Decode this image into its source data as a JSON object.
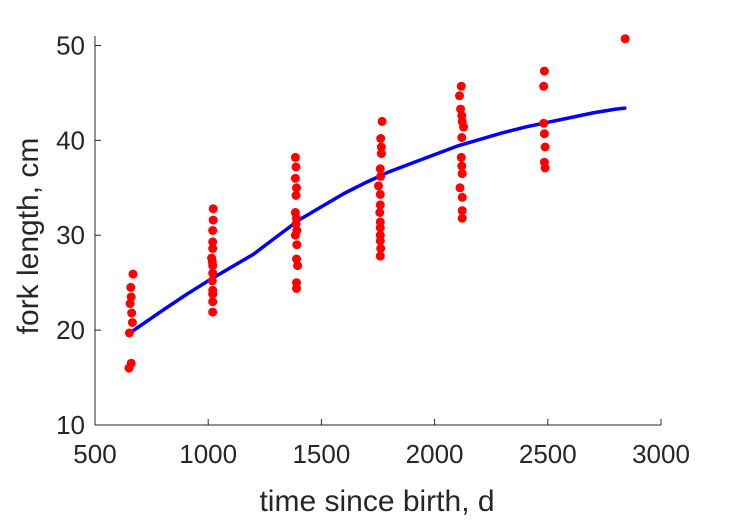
{
  "chart_data": {
    "type": "scatter",
    "xlabel": "time since birth, d",
    "ylabel": "fork length, cm",
    "xlim": [
      500,
      3000
    ],
    "ylim": [
      10,
      51
    ],
    "xticks": [
      500,
      1000,
      1500,
      2000,
      2500,
      3000
    ],
    "yticks": [
      10,
      20,
      30,
      40,
      50
    ],
    "grid": false,
    "legend": "none",
    "box": false,
    "series": [
      {
        "kind": "points",
        "color": "#ff0000",
        "points": [
          [
            650,
            16.0
          ],
          [
            660,
            16.5
          ],
          [
            652,
            19.7
          ],
          [
            655,
            22.8
          ],
          [
            660,
            23.5
          ],
          [
            658,
            24.5
          ],
          [
            662,
            21.8
          ],
          [
            665,
            20.8
          ],
          [
            668,
            25.9
          ],
          [
            1020,
            21.9
          ],
          [
            1020,
            23.0
          ],
          [
            1020,
            23.8
          ],
          [
            1020,
            24.2
          ],
          [
            1018,
            25.2
          ],
          [
            1020,
            26.0
          ],
          [
            1020,
            26.8
          ],
          [
            1018,
            27.2
          ],
          [
            1015,
            27.6
          ],
          [
            1020,
            28.6
          ],
          [
            1020,
            29.3
          ],
          [
            1020,
            30.5
          ],
          [
            1022,
            31.6
          ],
          [
            1022,
            32.8
          ],
          [
            1390,
            24.4
          ],
          [
            1390,
            25.0
          ],
          [
            1395,
            26.8
          ],
          [
            1390,
            27.5
          ],
          [
            1392,
            29.0
          ],
          [
            1385,
            30.0
          ],
          [
            1392,
            30.5
          ],
          [
            1388,
            31.2
          ],
          [
            1390,
            31.8
          ],
          [
            1385,
            32.4
          ],
          [
            1388,
            34.2
          ],
          [
            1390,
            35.0
          ],
          [
            1385,
            36.0
          ],
          [
            1388,
            37.2
          ],
          [
            1385,
            38.2
          ],
          [
            1760,
            27.8
          ],
          [
            1762,
            28.6
          ],
          [
            1760,
            29.4
          ],
          [
            1760,
            30.0
          ],
          [
            1760,
            30.8
          ],
          [
            1760,
            31.4
          ],
          [
            1758,
            32.4
          ],
          [
            1760,
            33.2
          ],
          [
            1760,
            34.3
          ],
          [
            1752,
            35.2
          ],
          [
            1762,
            36.2
          ],
          [
            1760,
            37.0
          ],
          [
            1765,
            38.6
          ],
          [
            1765,
            39.3
          ],
          [
            1762,
            40.2
          ],
          [
            1768,
            42.0
          ],
          [
            2122,
            31.8
          ],
          [
            2122,
            32.6
          ],
          [
            2122,
            34.0
          ],
          [
            2112,
            35.0
          ],
          [
            2122,
            36.5
          ],
          [
            2120,
            37.3
          ],
          [
            2118,
            38.2
          ],
          [
            2120,
            40.3
          ],
          [
            2128,
            41.4
          ],
          [
            2122,
            42.0
          ],
          [
            2120,
            42.6
          ],
          [
            2115,
            43.3
          ],
          [
            2110,
            44.7
          ],
          [
            2118,
            45.7
          ],
          [
            2488,
            37.1
          ],
          [
            2485,
            37.7
          ],
          [
            2488,
            39.3
          ],
          [
            2485,
            40.7
          ],
          [
            2482,
            41.8
          ],
          [
            2482,
            45.7
          ],
          [
            2485,
            47.3
          ],
          [
            2842,
            50.7
          ]
        ]
      },
      {
        "kind": "line",
        "color": "#0000ff",
        "points": [
          [
            660,
            19.8
          ],
          [
            800,
            22.1
          ],
          [
            900,
            23.7
          ],
          [
            1000,
            25.2
          ],
          [
            1100,
            26.6
          ],
          [
            1200,
            28.0
          ],
          [
            1300,
            29.8
          ],
          [
            1400,
            31.6
          ],
          [
            1500,
            33.0
          ],
          [
            1600,
            34.4
          ],
          [
            1700,
            35.6
          ],
          [
            1800,
            36.7
          ],
          [
            1900,
            37.6
          ],
          [
            2000,
            38.5
          ],
          [
            2100,
            39.4
          ],
          [
            2200,
            40.1
          ],
          [
            2300,
            40.8
          ],
          [
            2400,
            41.4
          ],
          [
            2500,
            41.9
          ],
          [
            2600,
            42.4
          ],
          [
            2700,
            42.9
          ],
          [
            2800,
            43.3
          ],
          [
            2840,
            43.4
          ]
        ]
      }
    ]
  }
}
